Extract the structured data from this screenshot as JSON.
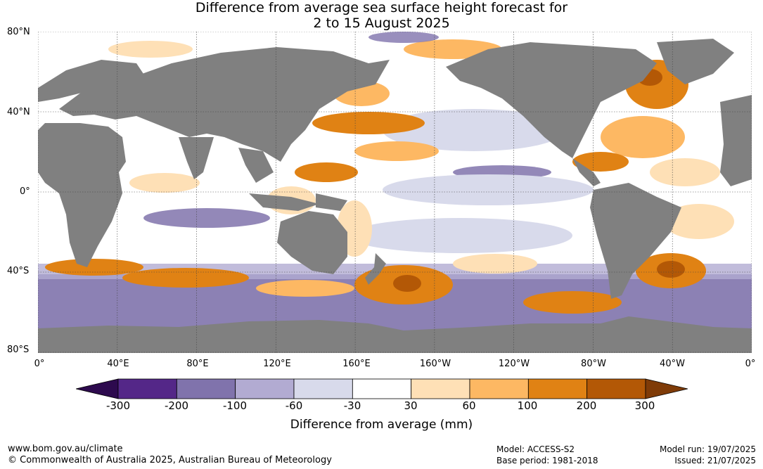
{
  "title": {
    "line1": "Difference from average sea surface height forecast for",
    "line2": "2 to 15 August 2025"
  },
  "map": {
    "lat_labels": [
      "80°N",
      "40°N",
      "0°",
      "40°S",
      "80°S"
    ],
    "lon_labels": [
      "0°",
      "40°E",
      "80°E",
      "120°E",
      "160°E",
      "160°W",
      "120°W",
      "80°W",
      "40°W",
      "0°"
    ],
    "colors": {
      "land": "#808080",
      "neutral": "#ffffff"
    }
  },
  "colorbar": {
    "title": "Difference from average (mm)",
    "tick_labels": [
      "-300",
      "-200",
      "-100",
      "-60",
      "-30",
      "30",
      "60",
      "100",
      "200",
      "300"
    ],
    "colors": [
      "#2d0a4e",
      "#542788",
      "#8073ac",
      "#b2abd2",
      "#d8daeb",
      "#ffffff",
      "#fee0b6",
      "#fdb863",
      "#e08214",
      "#b35806",
      "#7f3b08"
    ]
  },
  "footer": {
    "website": "www.bom.gov.au/climate",
    "copyright": "© Commonwealth of Australia 2025, Australian Bureau of Meteorology",
    "model": "Model: ACCESS-S2",
    "base_period": "Base period: 1981-2018",
    "model_run": "Model run: 19/07/2025",
    "issued": "Issued: 21/07/2025"
  }
}
